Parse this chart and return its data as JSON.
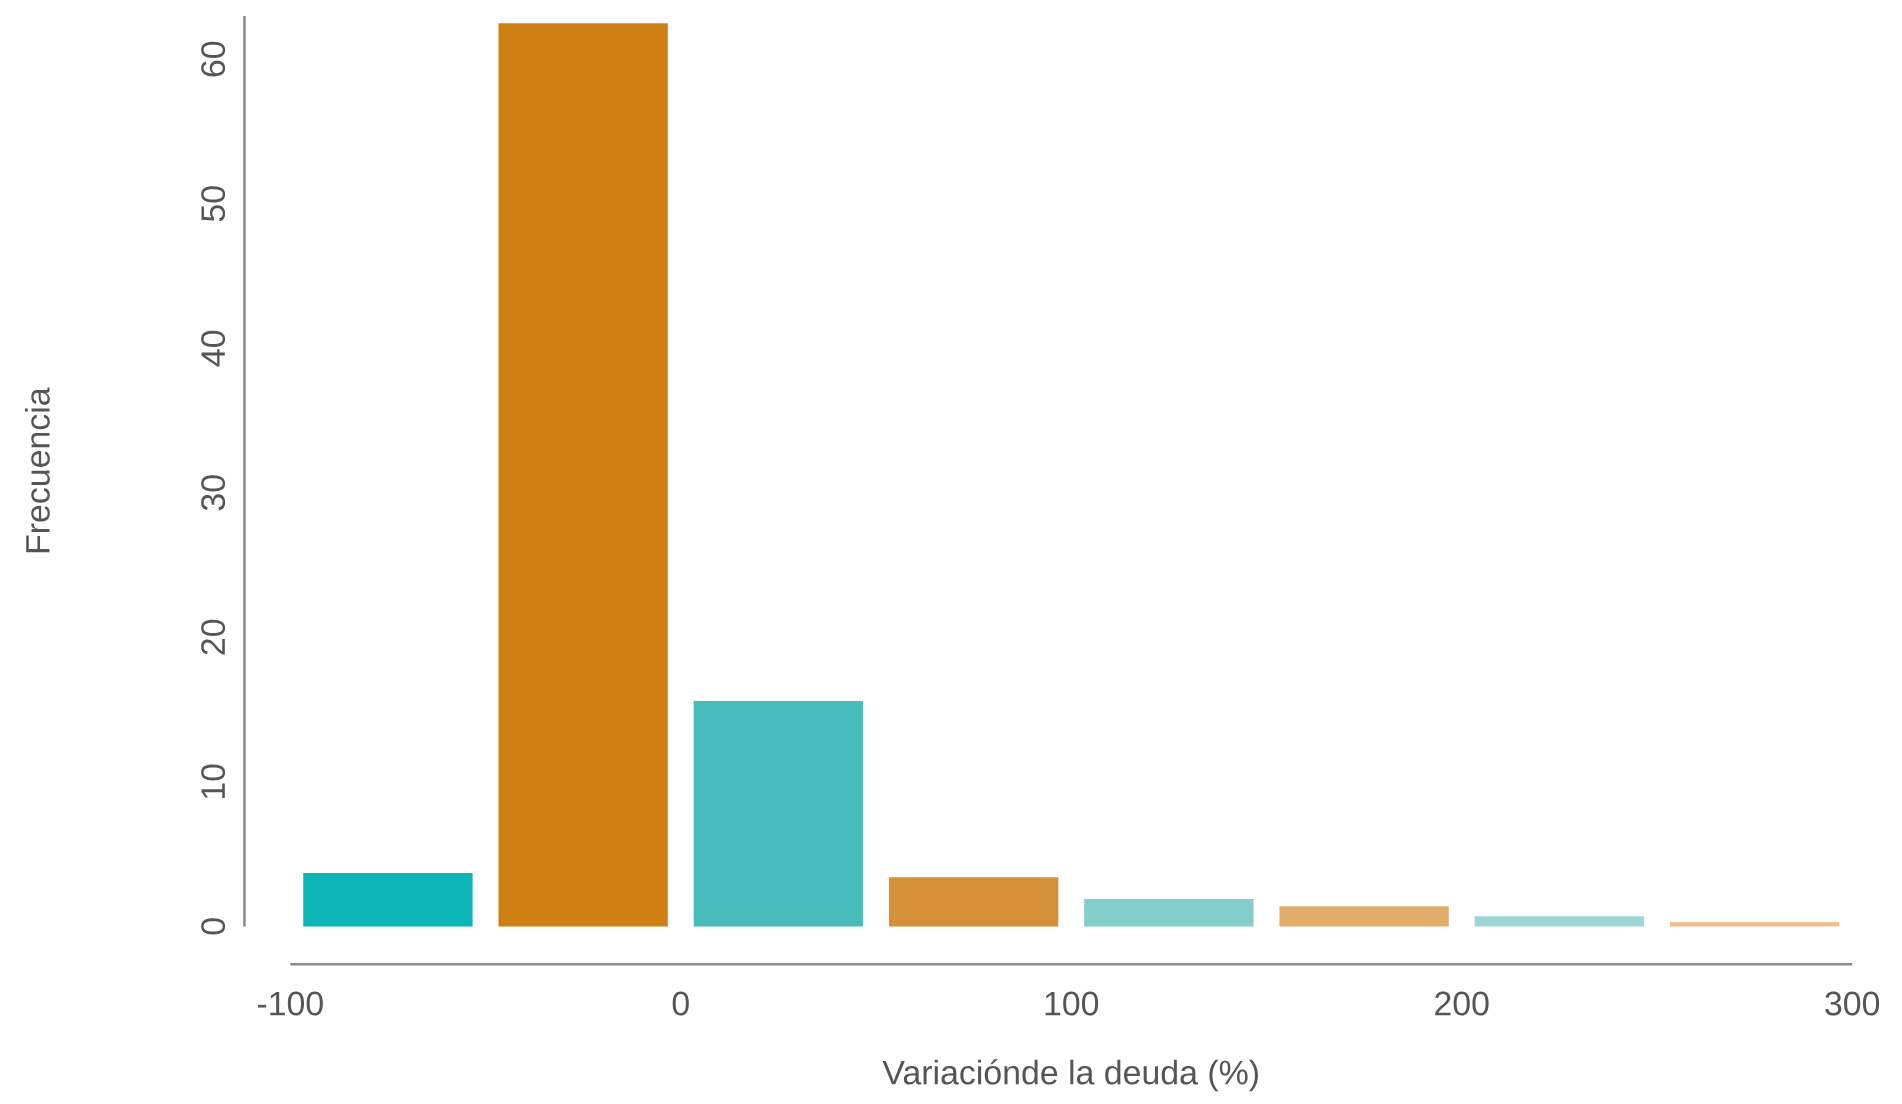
{
  "chart_data": {
    "type": "histogram",
    "xlabel": "Variaciónde la deuda (%)",
    "ylabel": "Frecuencia",
    "bins": [
      -100,
      -50,
      0,
      50,
      100,
      150,
      200,
      250,
      300
    ],
    "values": [
      3.7,
      62.5,
      15.6,
      3.4,
      1.9,
      1.4,
      0.7,
      0.3
    ],
    "colors": [
      "#0bb5b5",
      "#ce8015",
      "#48bbbb",
      "#d69039",
      "#84cdca",
      "#e2ad6b",
      "#9dd6d6",
      "#ecc38f"
    ],
    "xlim": [
      -100,
      300
    ],
    "ylim": [
      0,
      63
    ],
    "xticks": [
      -100,
      0,
      100,
      200,
      300
    ],
    "yticks": [
      0,
      10,
      20,
      30,
      40,
      50,
      60
    ],
    "grid": false
  }
}
